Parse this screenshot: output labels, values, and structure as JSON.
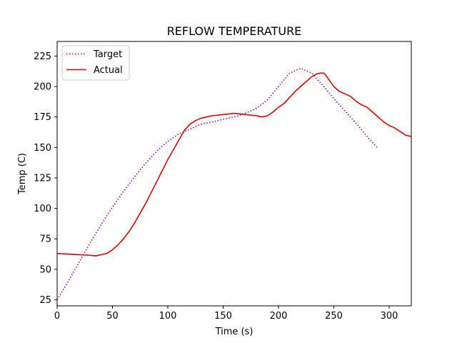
{
  "chart_data": {
    "type": "line",
    "title": "REFLOW TEMPERATURE",
    "xlabel": "Time (s)",
    "ylabel": "Temp (C)",
    "xlim": [
      0,
      320
    ],
    "ylim": [
      20,
      237
    ],
    "xticks": [
      0,
      50,
      100,
      150,
      200,
      250,
      300
    ],
    "yticks": [
      25,
      50,
      75,
      100,
      125,
      150,
      175,
      200,
      225
    ],
    "grid": false,
    "legend_position": "top-left",
    "series": [
      {
        "name": "Target",
        "color": "#8b00c9",
        "style": "dotted",
        "x": [
          0,
          10,
          20,
          30,
          40,
          50,
          60,
          70,
          80,
          90,
          100,
          110,
          120,
          130,
          140,
          150,
          160,
          170,
          180,
          190,
          200,
          210,
          220,
          230,
          240,
          250,
          260,
          270,
          280,
          290
        ],
        "y": [
          25,
          40,
          56,
          72,
          87,
          101,
          114,
          126,
          137,
          147,
          155,
          161,
          165,
          169,
          171,
          173,
          175,
          178,
          182,
          189,
          200,
          211,
          215,
          211,
          201,
          190,
          180,
          170,
          159,
          149
        ]
      },
      {
        "name": "Actual",
        "color": "#dd0000",
        "style": "solid",
        "x": [
          0,
          10,
          20,
          30,
          35,
          40,
          45,
          50,
          55,
          60,
          65,
          70,
          75,
          80,
          85,
          90,
          95,
          100,
          105,
          110,
          115,
          120,
          125,
          130,
          135,
          140,
          150,
          160,
          170,
          180,
          185,
          190,
          195,
          200,
          205,
          210,
          215,
          220,
          225,
          230,
          235,
          238,
          241,
          243,
          246,
          250,
          255,
          260,
          265,
          270,
          275,
          280,
          285,
          290,
          295,
          300,
          305,
          310,
          315,
          320
        ],
        "y": [
          63,
          62.5,
          62,
          61.5,
          61,
          62,
          63,
          66,
          70,
          75,
          81,
          88,
          96,
          104,
          113,
          122,
          131,
          140,
          148,
          156,
          164,
          169,
          172,
          174,
          175,
          176,
          177,
          178,
          177,
          176,
          175,
          176,
          179,
          183,
          186,
          191,
          196,
          200,
          204,
          208,
          210.5,
          211,
          211,
          209,
          205,
          200,
          196,
          194,
          192,
          188,
          185,
          183,
          179,
          175,
          171,
          168,
          166,
          163,
          160,
          159
        ]
      }
    ]
  }
}
